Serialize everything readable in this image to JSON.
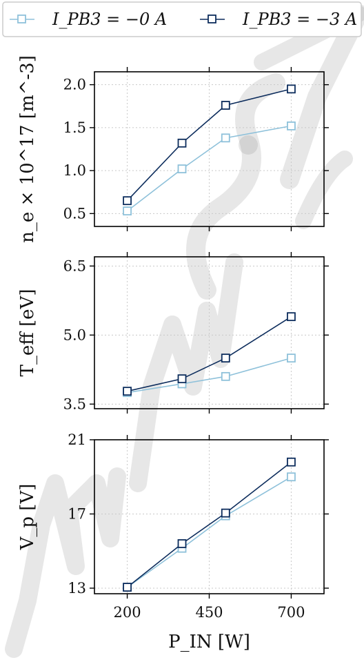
{
  "chart_data": [
    {
      "type": "line",
      "ylabel": "n_e × 10^17 [m^-3]",
      "xlim": [
        100,
        800
      ],
      "ylim": [
        0.35,
        2.15
      ],
      "yticks": [
        0.5,
        1.0,
        1.5,
        2.0
      ],
      "ytick_labels": [
        "0.5",
        "1.0",
        "1.5",
        "2.0"
      ],
      "grid": true,
      "series": [
        {
          "name": "I_PB3 = −0 A",
          "x": [
            200,
            367,
            500,
            700
          ],
          "values": [
            0.53,
            1.02,
            1.38,
            1.52
          ]
        },
        {
          "name": "I_PB3 = −3 A",
          "x": [
            200,
            367,
            500,
            700
          ],
          "values": [
            0.65,
            1.32,
            1.76,
            1.95
          ]
        }
      ]
    },
    {
      "type": "line",
      "ylabel": "T_eff [eV]",
      "xlim": [
        100,
        800
      ],
      "ylim": [
        3.4,
        6.7
      ],
      "yticks": [
        3.5,
        5.0,
        6.5
      ],
      "ytick_labels": [
        "3.5",
        "5.0",
        "6.5"
      ],
      "grid": true,
      "series": [
        {
          "name": "I_PB3 = −0 A",
          "x": [
            200,
            367,
            500,
            700
          ],
          "values": [
            3.75,
            3.94,
            4.1,
            4.5
          ]
        },
        {
          "name": "I_PB3 = −3 A",
          "x": [
            200,
            367,
            500,
            700
          ],
          "values": [
            3.78,
            4.05,
            4.5,
            5.4
          ]
        }
      ]
    },
    {
      "type": "line",
      "ylabel": "V_p [V]",
      "xlabel": "P_IN [W]",
      "xlim": [
        100,
        800
      ],
      "ylim": [
        12.7,
        21.0
      ],
      "xticks": [
        200,
        450,
        700
      ],
      "xtick_labels": [
        "200",
        "450",
        "700"
      ],
      "yticks": [
        13,
        17,
        21
      ],
      "ytick_labels": [
        "13",
        "17",
        "21"
      ],
      "grid": true,
      "series": [
        {
          "name": "I_PB3 = −0 A",
          "x": [
            200,
            367,
            500,
            700
          ],
          "values": [
            13.05,
            15.15,
            16.9,
            19.0
          ]
        },
        {
          "name": "I_PB3 = −3 A",
          "x": [
            200,
            367,
            500,
            700
          ],
          "values": [
            13.05,
            15.4,
            17.05,
            19.8
          ]
        }
      ]
    }
  ],
  "legend": {
    "placement": "top",
    "entries": [
      {
        "label": "I_PB3 = −0 A",
        "color": "#8ec1da"
      },
      {
        "label": "I_PB3 = −3 A",
        "color": "#0c2c5c"
      }
    ]
  },
  "colors": {
    "light": "#8ec1da",
    "dark": "#0c2c5c",
    "grid": "#c8c8c8",
    "axis": "#000000"
  },
  "watermark": "manuscript"
}
